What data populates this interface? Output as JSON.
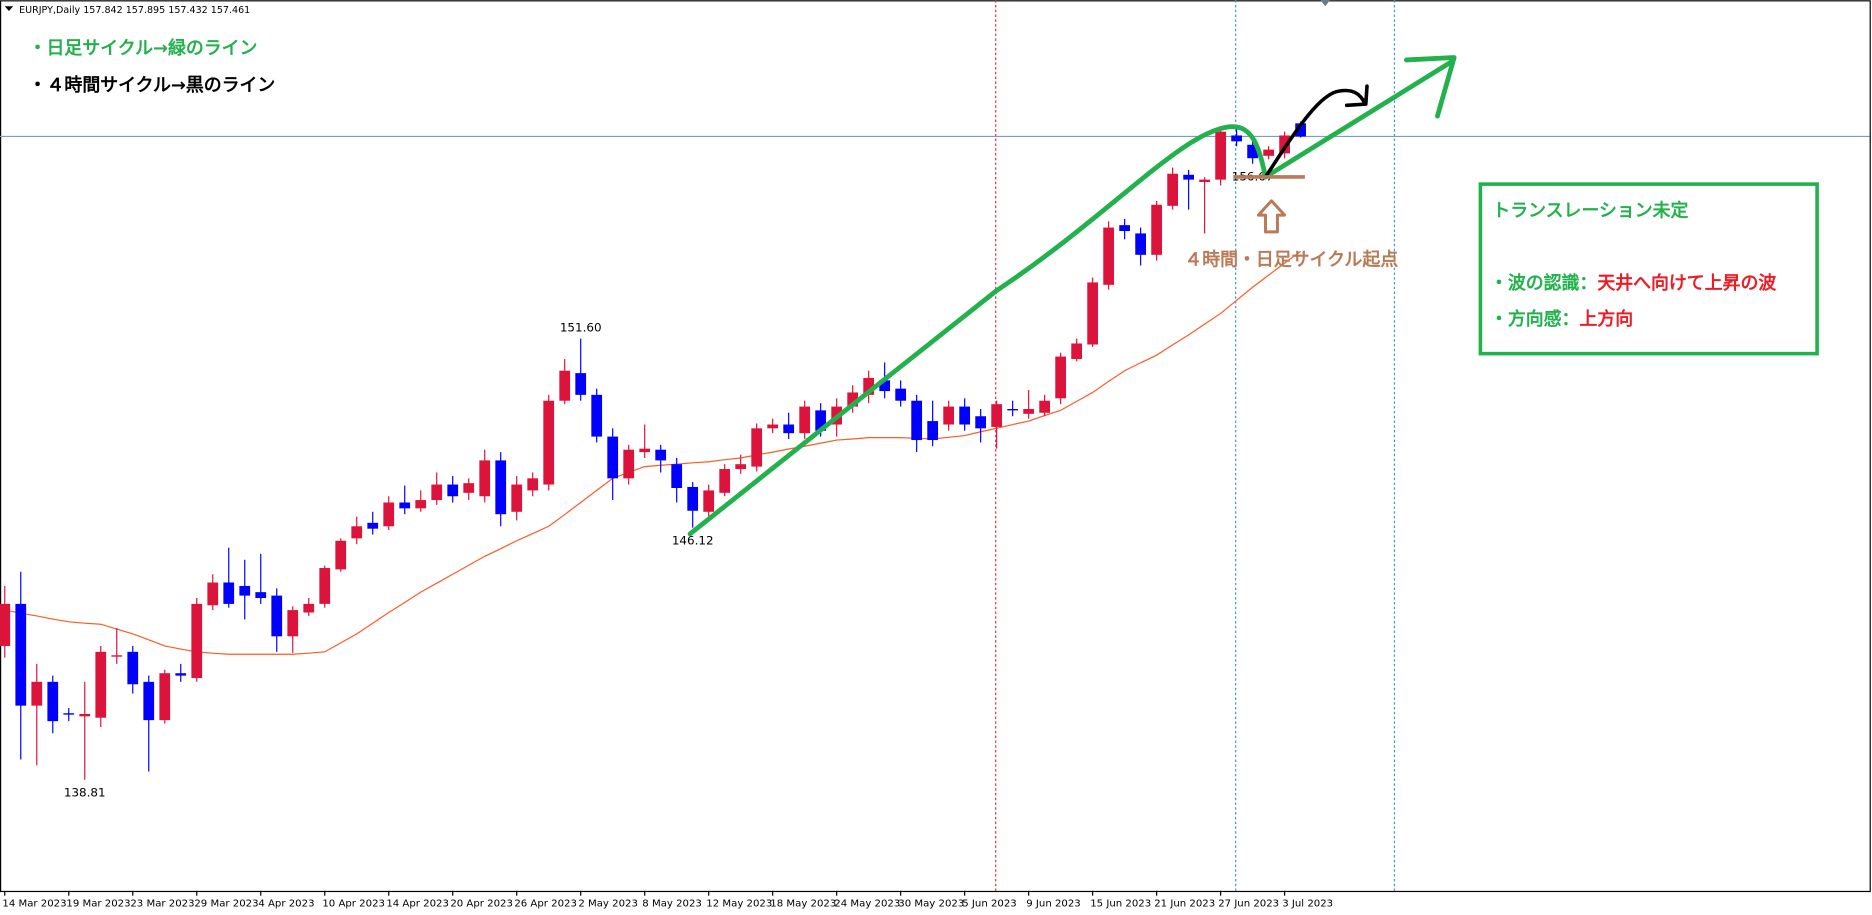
{
  "chart_data": {
    "type": "candlestick",
    "symbol": "EURJPY,Daily",
    "open": [
      142.69,
      143.91,
      140.96,
      141.65,
      140.74,
      140.65,
      140.61,
      142.38,
      142.52,
      141.65,
      140.54,
      141.9,
      141.76,
      143.87,
      144.53,
      144.43,
      144.25,
      144.15,
      142.97,
      143.66,
      143.91,
      144.91,
      145.81,
      146.26,
      146.16,
      146.85,
      146.68,
      146.92,
      147.37,
      147.13,
      147.03,
      148.07,
      146.58,
      147.2,
      147.37,
      149.8,
      150.6,
      149.97,
      148.76,
      147.55,
      148.31,
      148.38,
      147.96,
      147.3,
      146.58,
      147.13,
      147.82,
      147.89,
      149,
      149.11,
      148.86,
      149.52,
      149.11,
      149.63,
      149.97,
      150.39,
      150.15,
      149.8,
      149.21,
      149.11,
      149.63,
      149.35,
      149.04,
      149.56,
      149.42,
      149.45,
      149.87,
      151.01,
      151.43,
      153.16,
      154.89,
      154.65,
      154.03,
      155.45,
      156.35,
      156.14,
      156.21,
      157.49,
      157.22,
      156.9,
      156.97,
      157.842
    ],
    "high": [
      144.43,
      144.84,
      142.17,
      141.83,
      140.89,
      141.65,
      142.69,
      143.21,
      142.69,
      141.83,
      142,
      142.17,
      144.08,
      144.77,
      145.54,
      145.19,
      145.36,
      144.36,
      143.84,
      144.08,
      145.02,
      145.81,
      146.44,
      146.58,
      147.03,
      147.34,
      147.2,
      147.72,
      147.62,
      147.55,
      148.38,
      148.31,
      147.62,
      147.72,
      149.97,
      151.01,
      151.6,
      150.15,
      149,
      148.52,
      149.11,
      148.52,
      148.14,
      147.44,
      147.37,
      147.96,
      148.24,
      149.14,
      149.28,
      149.45,
      149.8,
      149.73,
      149.87,
      150.25,
      150.67,
      150.91,
      150.39,
      149.97,
      149.8,
      149.8,
      149.87,
      149.56,
      149.8,
      149.8,
      150.11,
      149.97,
      151.19,
      151.6,
      153.37,
      155,
      155.07,
      154.82,
      155.59,
      156.56,
      156.49,
      156.28,
      157.67,
      157.67,
      157.42,
      157.18,
      157.6,
      157.895
    ],
    "low": [
      142.35,
      139.4,
      139.23,
      140.16,
      140.51,
      138.81,
      140.34,
      142.17,
      141.31,
      139.05,
      140.44,
      141.65,
      141.65,
      143.73,
      143.8,
      143.46,
      143.91,
      142.52,
      142.49,
      143.56,
      143.8,
      144.84,
      145.64,
      145.92,
      146.05,
      146.51,
      146.58,
      146.78,
      146.85,
      146.92,
      146.85,
      146.16,
      146.33,
      147.03,
      147.2,
      149.7,
      149.8,
      148.59,
      146.92,
      147.37,
      148.14,
      147.72,
      146.85,
      146.12,
      146.4,
      147.03,
      147.68,
      147.75,
      148.86,
      148.69,
      148.69,
      148.76,
      148.76,
      149.45,
      149.73,
      149.87,
      149.63,
      148.31,
      148.48,
      148.93,
      148.93,
      148.59,
      148.41,
      149.35,
      149.28,
      149.35,
      149.7,
      150.94,
      151.36,
      153.02,
      154.48,
      153.72,
      153.86,
      155.34,
      155.34,
      154.65,
      156.04,
      157.18,
      156.67,
      156.8,
      156.83,
      157.432
    ],
    "close": [
      143.91,
      140.96,
      141.65,
      140.51,
      140.7,
      140.72,
      142.52,
      142.42,
      141.58,
      140.54,
      141.9,
      141.83,
      143.91,
      144.53,
      143.91,
      144.15,
      144.08,
      142.97,
      143.73,
      143.91,
      144.95,
      145.74,
      146.16,
      146.09,
      146.85,
      146.68,
      146.92,
      147.37,
      147.03,
      147.41,
      148.07,
      146.51,
      147.37,
      147.55,
      149.8,
      150.67,
      149.97,
      148.76,
      147.55,
      148.38,
      148.41,
      148.07,
      147.27,
      146.61,
      147.2,
      147.82,
      147.96,
      149,
      149.11,
      148.86,
      149.63,
      148.93,
      149.63,
      150.04,
      150.46,
      150.08,
      149.8,
      148.66,
      148.66,
      149.63,
      149.11,
      149,
      149.7,
      149.52,
      149.56,
      149.8,
      151.08,
      151.46,
      153.23,
      154.82,
      154.72,
      154.03,
      155.48,
      156.38,
      156.21,
      156.21,
      157.6,
      157.32,
      156.83,
      157.08,
      157.49,
      157.461
    ],
    "up_color": "#dc143c",
    "down_color": "#0000ff",
    "ylim": [
      135.59,
      161.41
    ],
    "xticks": [
      {
        "value": 0,
        "label": "14 Mar 2023"
      },
      {
        "value": 4,
        "label": "19 Mar 2023"
      },
      {
        "value": 8,
        "label": "23 Mar 2023"
      },
      {
        "value": 12,
        "label": "29 Mar 2023"
      },
      {
        "value": 16,
        "label": "4 Apr 2023"
      },
      {
        "value": 20,
        "label": "10 Apr 2023"
      },
      {
        "value": 24,
        "label": "14 Apr 2023"
      },
      {
        "value": 28,
        "label": "20 Apr 2023"
      },
      {
        "value": 32,
        "label": "26 Apr 2023"
      },
      {
        "value": 36,
        "label": "2 May 2023"
      },
      {
        "value": 40,
        "label": "8 May 2023"
      },
      {
        "value": 44,
        "label": "12 May 2023"
      },
      {
        "value": 48,
        "label": "18 May 2023"
      },
      {
        "value": 52,
        "label": "24 May 2023"
      },
      {
        "value": 56,
        "label": "30 May 2023"
      },
      {
        "value": 60,
        "label": "5 Jun 2023"
      },
      {
        "value": 64,
        "label": "9 Jun 2023"
      },
      {
        "value": 68,
        "label": "15 Jun 2023"
      },
      {
        "value": 72,
        "label": "21 Jun 2023"
      },
      {
        "value": 76,
        "label": "27 Jun 2023"
      },
      {
        "value": 80,
        "label": "3 Jul 2023"
      }
    ],
    "moving_average": {
      "color": "#ff5a28",
      "values": [
        143.73,
        143.64,
        143.56,
        143.47,
        143.39,
        143.35,
        143.32,
        143.18,
        143.04,
        142.87,
        142.69,
        142.6,
        142.52,
        142.48,
        142.45,
        142.45,
        142.45,
        142.45,
        142.45,
        142.48,
        142.52,
        142.78,
        143.04,
        143.35,
        143.66,
        143.95,
        144.25,
        144.51,
        144.77,
        145.03,
        145.29,
        145.51,
        145.74,
        145.95,
        146.16,
        146.5,
        146.85,
        147.2,
        147.55,
        147.72,
        147.89,
        147.93,
        147.96,
        148,
        148.03,
        148.09,
        148.14,
        148.23,
        148.31,
        148.4,
        148.48,
        148.57,
        148.66,
        148.69,
        148.73,
        148.73,
        148.73,
        148.71,
        148.69,
        148.74,
        148.79,
        148.9,
        149,
        149.11,
        149.21,
        149.37,
        149.52,
        149.78,
        150.04,
        150.36,
        150.67,
        150.9,
        151.12,
        151.42,
        151.71,
        152.02,
        152.33,
        152.71,
        153.09,
        153.44,
        153.79,
        154.13
      ]
    },
    "price_labels": [
      {
        "text": "151.60",
        "value": 151.6
      },
      {
        "text": "146.12",
        "value": 146.12
      },
      {
        "text": "138.81",
        "value": 138.81
      },
      {
        "text": "156.67",
        "value": 156.67
      }
    ],
    "notes": [
      {
        "text": "・日足サイクル→緑のライン",
        "color": "#22b14c"
      },
      {
        "text": "・４時間サイクル→黒のライン",
        "color": "#000000"
      }
    ],
    "annotation": {
      "text": "４時間・日足サイクル起点",
      "color": "#b97a57"
    },
    "box": {
      "title": "トランスレーション未定",
      "label_color": "#22b14c",
      "text_color": "#ed1c24",
      "lines": [
        {
          "label": "・波の認識：",
          "text": "天井へ向けて上昇の波"
        },
        {
          "label": "・方向感：",
          "text": "上方向"
        }
      ]
    }
  }
}
